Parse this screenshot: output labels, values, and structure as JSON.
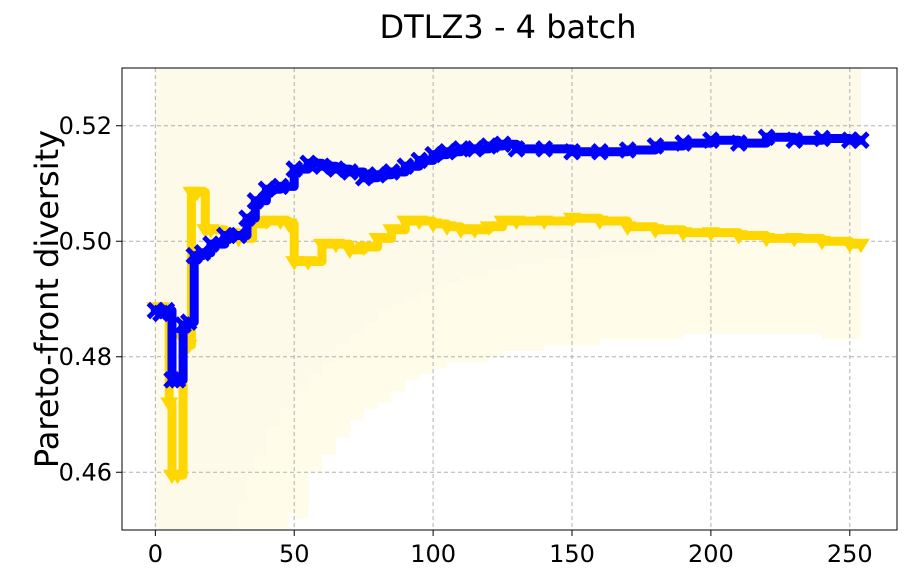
{
  "chart_data": {
    "type": "line",
    "title": "DTLZ3 - 4 batch",
    "xlabel": "",
    "ylabel": "Pareto-front diversity",
    "xlim": [
      -12,
      267
    ],
    "ylim": [
      0.45,
      0.53
    ],
    "x_ticks": [
      "0",
      "50",
      "100",
      "150",
      "200",
      "250"
    ],
    "y_ticks": [
      "0.46",
      "0.48",
      "0.50",
      "0.52"
    ],
    "grid": true,
    "colors": {
      "blue": "#0000ff",
      "gold": "#ffd700",
      "blue_band": "#e8e8fa",
      "gold_band": "#fffbe6",
      "overlap_band": "#ece9ee"
    },
    "series": [
      {
        "color": "#0000ff",
        "marker": "x",
        "x": [
          0,
          2,
          4,
          6,
          8,
          10,
          12,
          14,
          17,
          20,
          25,
          30,
          33,
          36,
          40,
          45,
          50,
          55,
          60,
          65,
          70,
          75,
          80,
          85,
          90,
          95,
          100,
          105,
          110,
          115,
          120,
          125,
          130,
          140,
          150,
          160,
          170,
          180,
          190,
          200,
          210,
          220,
          230,
          240,
          250,
          254
        ],
        "values": [
          0.488,
          0.4875,
          0.488,
          0.476,
          0.476,
          0.4855,
          0.486,
          0.4975,
          0.498,
          0.4995,
          0.501,
          0.501,
          0.504,
          0.507,
          0.509,
          0.5095,
          0.5125,
          0.5135,
          0.513,
          0.5125,
          0.512,
          0.511,
          0.5115,
          0.512,
          0.513,
          0.514,
          0.515,
          0.5155,
          0.516,
          0.516,
          0.5165,
          0.5168,
          0.516,
          0.516,
          0.5155,
          0.5155,
          0.5158,
          0.5165,
          0.517,
          0.5175,
          0.517,
          0.518,
          0.5175,
          0.5178,
          0.5175,
          0.5175
        ],
        "band_upper": [
          0.53,
          0.53,
          0.53,
          0.53,
          0.53,
          0.53,
          0.53,
          0.53,
          0.53,
          0.53,
          0.53,
          0.53,
          0.53,
          0.53,
          0.53,
          0.53,
          0.53,
          0.53,
          0.53,
          0.53,
          0.53,
          0.53,
          0.53,
          0.53,
          0.53,
          0.53,
          0.53,
          0.53,
          0.53,
          0.53,
          0.53,
          0.53,
          0.53,
          0.53,
          0.53,
          0.53,
          0.53,
          0.53,
          0.53,
          0.53,
          0.53,
          0.53,
          0.53,
          0.53,
          0.53,
          0.53
        ],
        "band_lower": [
          0.45,
          0.45,
          0.45,
          0.45,
          0.45,
          0.45,
          0.45,
          0.45,
          0.45,
          0.45,
          0.45,
          0.455,
          0.46,
          0.463,
          0.468,
          0.471,
          0.474,
          0.477,
          0.479,
          0.482,
          0.484,
          0.486,
          0.488,
          0.489,
          0.49,
          0.491,
          0.492,
          0.493,
          0.494,
          0.494,
          0.495,
          0.495,
          0.496,
          0.497,
          0.497,
          0.498,
          0.498,
          0.499,
          0.499,
          0.5,
          0.5,
          0.5,
          0.5,
          0.5,
          0.5,
          0.5
        ]
      },
      {
        "color": "#ffd700",
        "marker": "triangle-down",
        "x": [
          0,
          2,
          4,
          5,
          6,
          8,
          10,
          12,
          13,
          15,
          18,
          20,
          25,
          30,
          35,
          40,
          45,
          48,
          50,
          55,
          60,
          65,
          70,
          75,
          80,
          85,
          90,
          95,
          100,
          105,
          110,
          115,
          120,
          125,
          130,
          140,
          150,
          160,
          170,
          180,
          190,
          200,
          210,
          220,
          230,
          240,
          250,
          254
        ],
        "values": [
          0.4885,
          0.4885,
          0.488,
          0.472,
          0.4595,
          0.4595,
          0.483,
          0.482,
          0.5085,
          0.5085,
          0.502,
          0.502,
          0.5015,
          0.5005,
          0.503,
          0.5035,
          0.5035,
          0.503,
          0.4965,
          0.4965,
          0.4995,
          0.4995,
          0.4985,
          0.499,
          0.5005,
          0.502,
          0.5035,
          0.5035,
          0.503,
          0.5025,
          0.502,
          0.502,
          0.5025,
          0.5035,
          0.5035,
          0.5035,
          0.504,
          0.5035,
          0.5025,
          0.502,
          0.5015,
          0.5015,
          0.501,
          0.5005,
          0.5005,
          0.5,
          0.4995,
          0.4995
        ],
        "band_upper": [
          0.53,
          0.53,
          0.53,
          0.53,
          0.53,
          0.53,
          0.53,
          0.53,
          0.53,
          0.53,
          0.53,
          0.53,
          0.53,
          0.53,
          0.53,
          0.53,
          0.53,
          0.53,
          0.53,
          0.53,
          0.53,
          0.53,
          0.53,
          0.53,
          0.53,
          0.53,
          0.53,
          0.53,
          0.53,
          0.53,
          0.53,
          0.53,
          0.53,
          0.53,
          0.53,
          0.53,
          0.53,
          0.53,
          0.53,
          0.53,
          0.53,
          0.53,
          0.53,
          0.53,
          0.53,
          0.53,
          0.53,
          0.53
        ],
        "band_lower": [
          0.45,
          0.45,
          0.45,
          0.45,
          0.45,
          0.45,
          0.45,
          0.45,
          0.45,
          0.45,
          0.45,
          0.45,
          0.45,
          0.45,
          0.45,
          0.45,
          0.45,
          0.453,
          0.452,
          0.46,
          0.463,
          0.466,
          0.469,
          0.471,
          0.472,
          0.474,
          0.476,
          0.477,
          0.478,
          0.479,
          0.479,
          0.479,
          0.48,
          0.481,
          0.481,
          0.482,
          0.482,
          0.483,
          0.483,
          0.483,
          0.484,
          0.484,
          0.484,
          0.484,
          0.484,
          0.483,
          0.483,
          0.483
        ]
      }
    ]
  }
}
